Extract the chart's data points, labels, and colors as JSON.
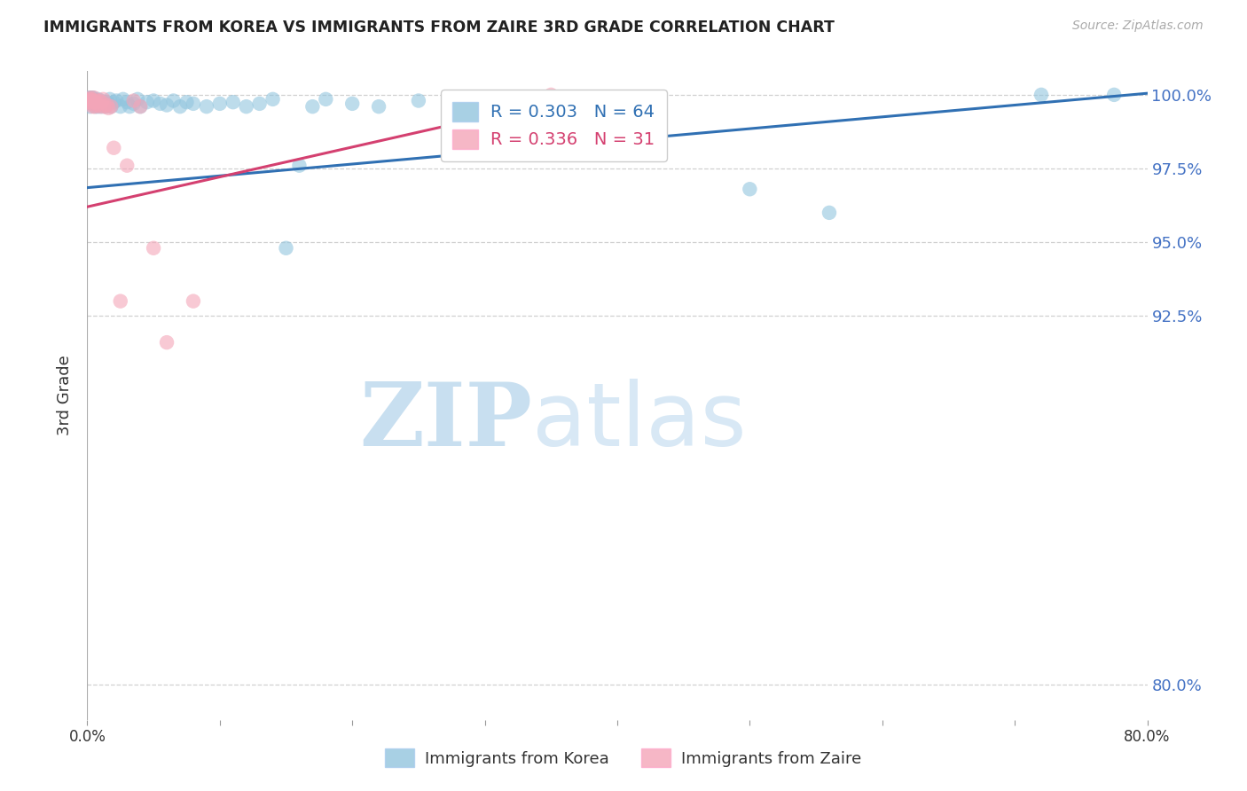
{
  "title": "IMMIGRANTS FROM KOREA VS IMMIGRANTS FROM ZAIRE 3RD GRADE CORRELATION CHART",
  "source": "Source: ZipAtlas.com",
  "ylabel": "3rd Grade",
  "ytick_labels": [
    "80.0%",
    "92.5%",
    "95.0%",
    "97.5%",
    "100.0%"
  ],
  "ytick_values": [
    0.8,
    0.925,
    0.95,
    0.975,
    1.0
  ],
  "xlim": [
    0.0,
    0.8
  ],
  "ylim": [
    0.788,
    1.008
  ],
  "legend_blue_r": "R = 0.303",
  "legend_blue_n": "N = 64",
  "legend_pink_r": "R = 0.336",
  "legend_pink_n": "N = 31",
  "blue_color": "#92c5de",
  "pink_color": "#f4a5b8",
  "trendline_blue": "#3070b3",
  "trendline_pink": "#d44070",
  "korea_x": [
    0.001,
    0.002,
    0.002,
    0.003,
    0.003,
    0.003,
    0.004,
    0.004,
    0.005,
    0.005,
    0.006,
    0.006,
    0.007,
    0.007,
    0.008,
    0.008,
    0.009,
    0.01,
    0.011,
    0.012,
    0.013,
    0.014,
    0.015,
    0.016,
    0.017,
    0.018,
    0.02,
    0.022,
    0.025,
    0.027,
    0.03,
    0.032,
    0.035,
    0.038,
    0.04,
    0.045,
    0.05,
    0.055,
    0.06,
    0.065,
    0.07,
    0.075,
    0.08,
    0.09,
    0.1,
    0.11,
    0.12,
    0.13,
    0.14,
    0.15,
    0.16,
    0.17,
    0.18,
    0.2,
    0.22,
    0.25,
    0.28,
    0.31,
    0.34,
    0.38,
    0.5,
    0.56,
    0.72,
    0.775
  ],
  "korea_y": [
    0.999,
    0.998,
    0.996,
    0.999,
    0.998,
    0.997,
    0.998,
    0.999,
    0.997,
    0.9985,
    0.9975,
    0.996,
    0.998,
    0.997,
    0.9985,
    0.996,
    0.9975,
    0.998,
    0.996,
    0.997,
    0.9975,
    0.996,
    0.9975,
    0.997,
    0.9985,
    0.996,
    0.9975,
    0.998,
    0.996,
    0.9985,
    0.9975,
    0.996,
    0.997,
    0.9985,
    0.996,
    0.9975,
    0.998,
    0.997,
    0.9965,
    0.998,
    0.996,
    0.9975,
    0.997,
    0.996,
    0.997,
    0.9975,
    0.996,
    0.997,
    0.9985,
    0.948,
    0.976,
    0.996,
    0.9985,
    0.997,
    0.996,
    0.998,
    0.997,
    0.9985,
    0.996,
    0.9975,
    0.968,
    0.96,
    1.0,
    1.0
  ],
  "zaire_x": [
    0.001,
    0.001,
    0.002,
    0.002,
    0.003,
    0.003,
    0.004,
    0.004,
    0.005,
    0.005,
    0.006,
    0.006,
    0.007,
    0.008,
    0.009,
    0.01,
    0.011,
    0.012,
    0.013,
    0.015,
    0.016,
    0.018,
    0.02,
    0.025,
    0.03,
    0.035,
    0.04,
    0.05,
    0.06,
    0.08,
    0.35
  ],
  "zaire_y": [
    0.9985,
    0.9975,
    0.999,
    0.998,
    0.9985,
    0.997,
    0.998,
    0.996,
    0.999,
    0.9975,
    0.998,
    0.996,
    0.9975,
    0.9965,
    0.998,
    0.996,
    0.9975,
    0.9985,
    0.996,
    0.9965,
    0.9955,
    0.996,
    0.982,
    0.93,
    0.976,
    0.998,
    0.996,
    0.948,
    0.916,
    0.93,
    1.0
  ],
  "watermark_zip": "ZIP",
  "watermark_atlas": "atlas",
  "background_color": "#ffffff",
  "grid_color": "#d0d0d0"
}
